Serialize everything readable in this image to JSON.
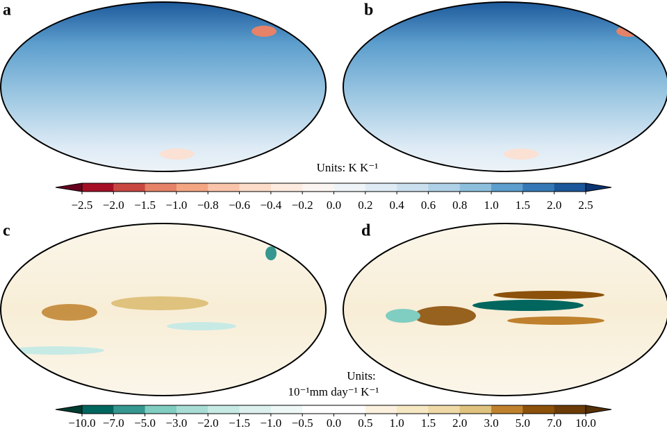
{
  "panels": [
    {
      "label": "a"
    },
    {
      "label": "b"
    },
    {
      "label": "c"
    },
    {
      "label": "d"
    }
  ],
  "colorbars": [
    {
      "units_lines": [
        "Units: K K⁻¹"
      ],
      "ticks": [
        {
          "value": -2.5,
          "label": "−2.5"
        },
        {
          "value": -2.0,
          "label": "−2.0"
        },
        {
          "value": -1.5,
          "label": "−1.5"
        },
        {
          "value": -1.0,
          "label": "−1.0"
        },
        {
          "value": -0.8,
          "label": "−0.8"
        },
        {
          "value": -0.6,
          "label": "−0.6"
        },
        {
          "value": -0.4,
          "label": "−0.4"
        },
        {
          "value": -0.2,
          "label": "−0.2"
        },
        {
          "value": 0,
          "label": "0.0"
        },
        0.2,
        0.4,
        0.6,
        0.8,
        {
          "value": 1.0,
          "label": "1.0"
        },
        1.5,
        {
          "value": 2.0,
          "label": "2.0"
        },
        2.5
      ],
      "colors": [
        "#67001f",
        "#a50f26",
        "#c94741",
        "#e58267",
        "#f4a582",
        "#f9c4a9",
        "#fcdcc9",
        "#fdebdf",
        "#fbf5f1",
        "#eef4f8",
        "#deebf5",
        "#cbe0ee",
        "#aed1e7",
        "#8dbfdd",
        "#5c9ecd",
        "#3479b6",
        "#1a5699",
        "#0b3473"
      ]
    },
    {
      "units_lines": [
        "Units:",
        "10⁻¹mm day⁻¹ K⁻¹"
      ],
      "ticks": [
        {
          "value": -10.0,
          "label": "−10.0"
        },
        {
          "value": -7.0,
          "label": "−7.0"
        },
        {
          "value": -5.0,
          "label": "−5.0"
        },
        {
          "value": -3.0,
          "label": "−3.0"
        },
        {
          "value": -2.0,
          "label": "−2.0"
        },
        {
          "value": -1.5,
          "label": "−1.5"
        },
        {
          "value": -1.0,
          "label": "−1.0"
        },
        {
          "value": -0.5,
          "label": "−0.5"
        },
        {
          "value": 0,
          "label": "0.0"
        },
        0.5,
        {
          "value": 1.0,
          "label": "1.0"
        },
        1.5,
        {
          "value": 2.0,
          "label": "2.0"
        },
        {
          "value": 3.0,
          "label": "3.0"
        },
        {
          "value": 5.0,
          "label": "5.0"
        },
        {
          "value": 7.0,
          "label": "7.0"
        },
        {
          "value": 10.0,
          "label": "10.0"
        }
      ],
      "colors": [
        "#003c30",
        "#01665e",
        "#35978f",
        "#80cdc1",
        "#a8ddd5",
        "#c7eae5",
        "#dcf1ee",
        "#eef8f6",
        "#ffffff",
        "#ffffff",
        "#fbf1de",
        "#f6e8c3",
        "#efd9a6",
        "#dfc27d",
        "#bf812d",
        "#8c510a",
        "#6b3c07",
        "#543005"
      ]
    }
  ]
}
